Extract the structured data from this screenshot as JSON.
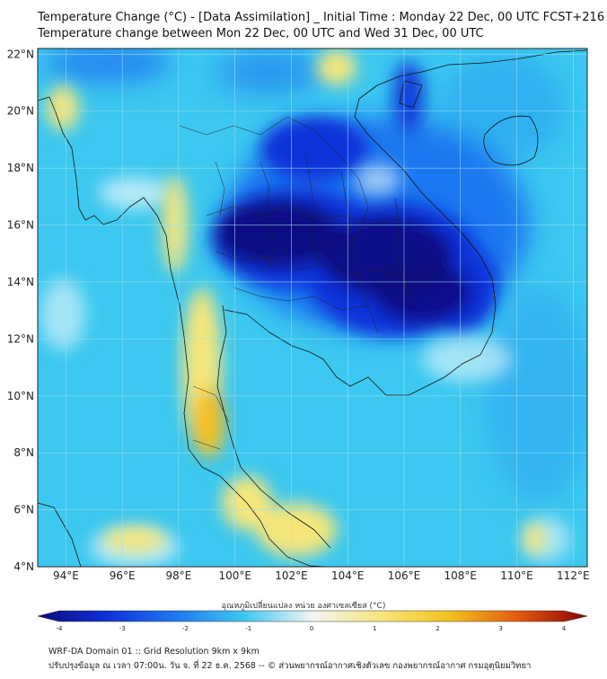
{
  "title": {
    "line1": "Temperature Change (°C) - [Data Assimilation] _ Initial Time : Monday 22 Dec, 00 UTC FCST+216",
    "line2": "Temperature change between Mon 22 Dec, 00 UTC and Wed 31 Dec, 00 UTC"
  },
  "map": {
    "lat_ticks": [
      "4°N",
      "6°N",
      "8°N",
      "10°N",
      "12°N",
      "14°N",
      "16°N",
      "18°N",
      "20°N",
      "22°N"
    ],
    "lon_ticks": [
      "94°E",
      "96°E",
      "98°E",
      "100°E",
      "102°E",
      "104°E",
      "106°E",
      "108°E",
      "110°E",
      "112°E"
    ],
    "lat_values": [
      4,
      6,
      8,
      10,
      12,
      14,
      16,
      18,
      20,
      22
    ],
    "lon_values": [
      94,
      96,
      98,
      100,
      102,
      104,
      106,
      108,
      110,
      112
    ],
    "extent": {
      "lon_min": 93,
      "lon_max": 112.5,
      "lat_min": 4,
      "lat_max": 22.2
    },
    "background_color": "#3cc8f0"
  },
  "colorbar": {
    "label": "อุณหภูมิเปลี่ยนแปลง หน่วย องศาเซลเซียส (°C)",
    "ticks": [
      "-4",
      "-3",
      "-2",
      "-1",
      "0",
      "1",
      "2",
      "3",
      "4"
    ],
    "values": [
      -4,
      -3,
      -2,
      -1,
      0,
      1,
      2,
      3,
      4
    ],
    "colors": [
      "#0a0a7a",
      "#1030d8",
      "#1e78f0",
      "#3cc8f0",
      "#f4f4f4",
      "#f6e67a",
      "#f4c020",
      "#e25a10",
      "#8a0000"
    ]
  },
  "footer": {
    "line1": "WRF-DA Domain 01 :: Grid Resolution 9km x 9km",
    "line2": "ปรับปรุงข้อมูล ณ เวลา 07:00น. วัน จ. ที่ 22 ธ.ค. 2568 -- © ส่วนพยากรณ์อากาศเชิงตัวเลข กองพยากรณ์อากาศ กรมอุตุนิยมวิทยา"
  }
}
